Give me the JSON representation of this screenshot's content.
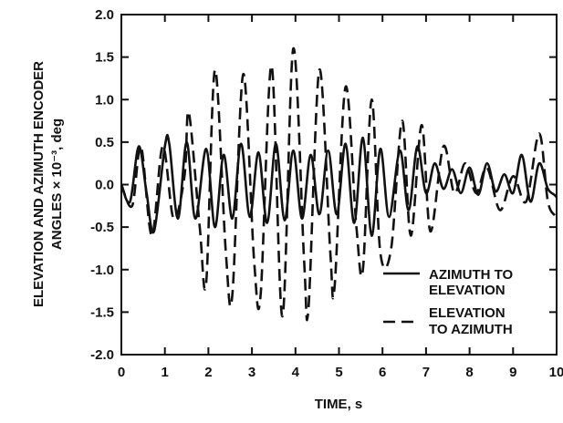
{
  "chart_data": {
    "type": "line",
    "title": "",
    "xlabel": "TIME, s",
    "ylabel_line1": "ELEVATION AND AZIMUTH ENCODER",
    "ylabel_line2": "ANGLES × 10⁻³, deg",
    "xlim": [
      0,
      10
    ],
    "ylim": [
      -2.0,
      2.0
    ],
    "xticks": [
      0,
      1,
      2,
      3,
      4,
      5,
      6,
      7,
      8,
      9,
      10
    ],
    "xtick_labels": [
      "0",
      "1",
      "2",
      "3",
      "4",
      "5",
      "6",
      "7",
      "8",
      "9",
      "10"
    ],
    "yticks": [
      2.0,
      1.5,
      1.0,
      0.5,
      0.0,
      -0.5,
      -1.0,
      -1.5,
      -2.0
    ],
    "ytick_labels": [
      "2.0",
      "1.5",
      "1.0",
      "0.5",
      "0.0",
      "-0.5",
      "-1.0",
      "-1.5",
      "-2.0"
    ],
    "grid": false,
    "legend_position": "lower-right",
    "series": [
      {
        "name": "AZIMUTH TO ELEVATION",
        "style": "solid",
        "color": "#111111",
        "points": [
          [
            0.0,
            0.0
          ],
          [
            0.2,
            -0.2
          ],
          [
            0.4,
            0.45
          ],
          [
            0.58,
            -0.1
          ],
          [
            0.75,
            -0.55
          ],
          [
            1.0,
            0.45
          ],
          [
            1.1,
            0.48
          ],
          [
            1.3,
            -0.4
          ],
          [
            1.5,
            0.5
          ],
          [
            1.7,
            -0.4
          ],
          [
            1.95,
            0.42
          ],
          [
            2.15,
            -0.5
          ],
          [
            2.35,
            0.35
          ],
          [
            2.55,
            -0.4
          ],
          [
            2.75,
            0.48
          ],
          [
            2.95,
            -0.38
          ],
          [
            3.15,
            0.38
          ],
          [
            3.35,
            -0.45
          ],
          [
            3.55,
            0.48
          ],
          [
            3.75,
            -0.42
          ],
          [
            3.95,
            0.4
          ],
          [
            4.15,
            -0.4
          ],
          [
            4.35,
            0.35
          ],
          [
            4.55,
            -0.35
          ],
          [
            4.75,
            0.4
          ],
          [
            4.95,
            -0.35
          ],
          [
            5.15,
            0.48
          ],
          [
            5.35,
            -0.45
          ],
          [
            5.55,
            0.55
          ],
          [
            5.75,
            -0.6
          ],
          [
            5.95,
            0.42
          ],
          [
            6.15,
            -0.38
          ],
          [
            6.4,
            0.4
          ],
          [
            6.6,
            -0.3
          ],
          [
            6.8,
            0.45
          ],
          [
            7.0,
            -0.1
          ],
          [
            7.2,
            0.25
          ],
          [
            7.4,
            -0.05
          ],
          [
            7.6,
            0.18
          ],
          [
            7.8,
            -0.1
          ],
          [
            8.0,
            0.2
          ],
          [
            8.2,
            -0.12
          ],
          [
            8.4,
            0.25
          ],
          [
            8.6,
            -0.08
          ],
          [
            8.8,
            0.12
          ],
          [
            9.0,
            -0.1
          ],
          [
            9.2,
            0.35
          ],
          [
            9.4,
            -0.2
          ],
          [
            9.6,
            0.25
          ],
          [
            9.8,
            -0.05
          ],
          [
            10.0,
            -0.15
          ],
          [
            10.1,
            -0.35
          ]
        ]
      },
      {
        "name": "ELEVATION TO AZIMUTH",
        "style": "dashed",
        "color": "#111111",
        "points": [
          [
            0.0,
            0.0
          ],
          [
            0.25,
            -0.25
          ],
          [
            0.45,
            0.45
          ],
          [
            0.7,
            -0.6
          ],
          [
            0.95,
            0.45
          ],
          [
            1.2,
            -0.4
          ],
          [
            1.45,
            0.1
          ],
          [
            1.55,
            0.85
          ],
          [
            1.8,
            -0.5
          ],
          [
            1.95,
            -1.15
          ],
          [
            2.15,
            1.35
          ],
          [
            2.4,
            -0.8
          ],
          [
            2.55,
            -1.3
          ],
          [
            2.8,
            1.3
          ],
          [
            3.05,
            -0.9
          ],
          [
            3.2,
            -1.3
          ],
          [
            3.45,
            1.4
          ],
          [
            3.7,
            -1.55
          ],
          [
            3.95,
            1.6
          ],
          [
            4.2,
            -0.9
          ],
          [
            4.3,
            -1.45
          ],
          [
            4.55,
            1.35
          ],
          [
            4.8,
            -0.8
          ],
          [
            4.9,
            -1.2
          ],
          [
            5.15,
            1.15
          ],
          [
            5.4,
            -0.5
          ],
          [
            5.55,
            -1.0
          ],
          [
            5.75,
            1.0
          ],
          [
            5.95,
            -0.8
          ],
          [
            6.2,
            -0.75
          ],
          [
            6.45,
            0.75
          ],
          [
            6.65,
            -0.6
          ],
          [
            6.9,
            0.7
          ],
          [
            7.1,
            -0.55
          ],
          [
            7.4,
            0.45
          ],
          [
            7.65,
            -0.1
          ],
          [
            7.9,
            0.25
          ],
          [
            8.15,
            -0.1
          ],
          [
            8.4,
            0.2
          ],
          [
            8.7,
            -0.3
          ],
          [
            9.0,
            0.1
          ],
          [
            9.3,
            -0.2
          ],
          [
            9.6,
            0.6
          ],
          [
            9.8,
            -0.2
          ],
          [
            10.0,
            -0.4
          ],
          [
            10.1,
            -0.65
          ]
        ]
      }
    ]
  }
}
